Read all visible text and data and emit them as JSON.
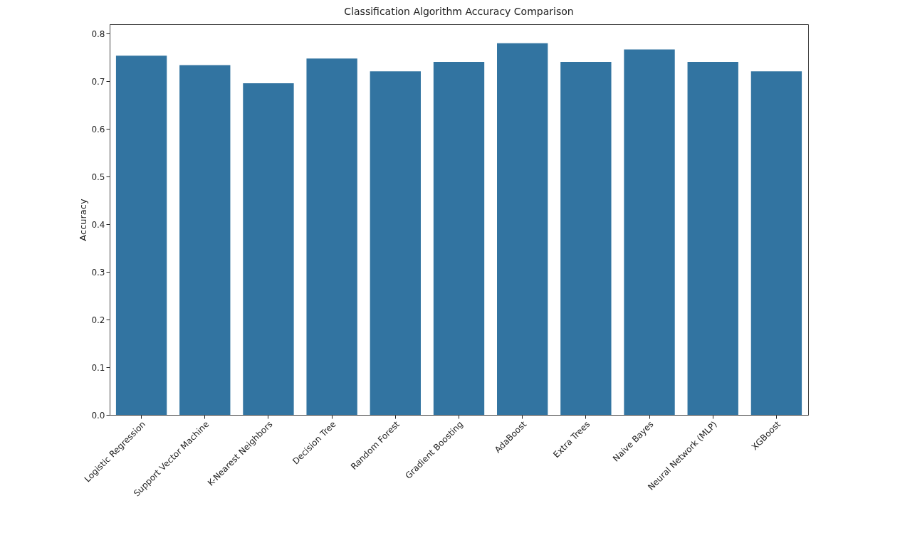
{
  "chart_data": {
    "type": "bar",
    "title": "Classification Algorithm Accuracy Comparison",
    "ylabel": "Accuracy",
    "categories": [
      "Logistic Regression",
      "Support Vector Machine",
      "K-Nearest Neighbors",
      "Decision Tree",
      "Random Forest",
      "Gradient Boosting",
      "AdaBoost",
      "Extra Trees",
      "Naive Bayes",
      "Neural Network (MLP)",
      "XGBoost"
    ],
    "values": [
      0.754,
      0.734,
      0.696,
      0.748,
      0.721,
      0.741,
      0.78,
      0.741,
      0.767,
      0.741,
      0.721
    ],
    "color": "#3274a1",
    "ylim": [
      0,
      0.82
    ],
    "yticks": [
      {
        "value": 0,
        "label": "0.0"
      },
      0.1,
      0.2,
      0.3,
      0.4,
      0.5,
      0.6,
      0.7,
      0.8
    ],
    "grid": false
  }
}
